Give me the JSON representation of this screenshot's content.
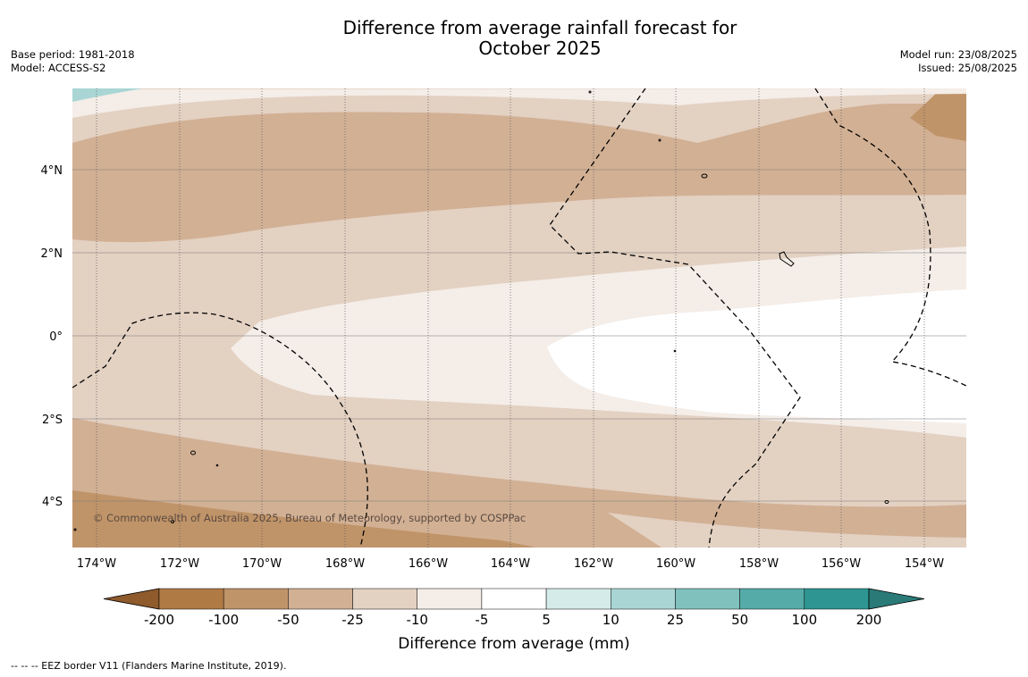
{
  "title_line1": "Difference from average rainfall forecast for",
  "title_line2": "October 2025",
  "meta_left": [
    "Base period: 1981-2018",
    "Model: ACCESS-S2"
  ],
  "meta_right": [
    "Model run: 23/08/2025",
    "Issued: 25/08/2025"
  ],
  "lon_ticks": [
    "174°W",
    "172°W",
    "170°W",
    "168°W",
    "166°W",
    "164°W",
    "162°W",
    "160°W",
    "158°W",
    "156°W",
    "154°W"
  ],
  "lat_ticks": [
    "4°N",
    "2°N",
    "0°",
    "2°S",
    "4°S"
  ],
  "copyright": "© Commonwealth of Australia 2025, Bureau of Meteorology, supported by COSPPac",
  "colorbar": {
    "label": "Difference from average (mm)",
    "tick_labels": [
      "-200",
      "-100",
      "-50",
      "-25",
      "-10",
      "-5",
      "5",
      "10",
      "25",
      "50",
      "100",
      "200"
    ],
    "colors": [
      "#8f5a2c",
      "#b07a45",
      "#c09469",
      "#d2b094",
      "#e3d1c2",
      "#f4ede8",
      "#ffffff",
      "#d4ebe9",
      "#a9d6d4",
      "#80c1be",
      "#55aba8",
      "#2e9592",
      "#2a7a78"
    ]
  },
  "footer": "--  --  -- EEZ border V11 (Flanders Marine Institute, 2019)."
}
